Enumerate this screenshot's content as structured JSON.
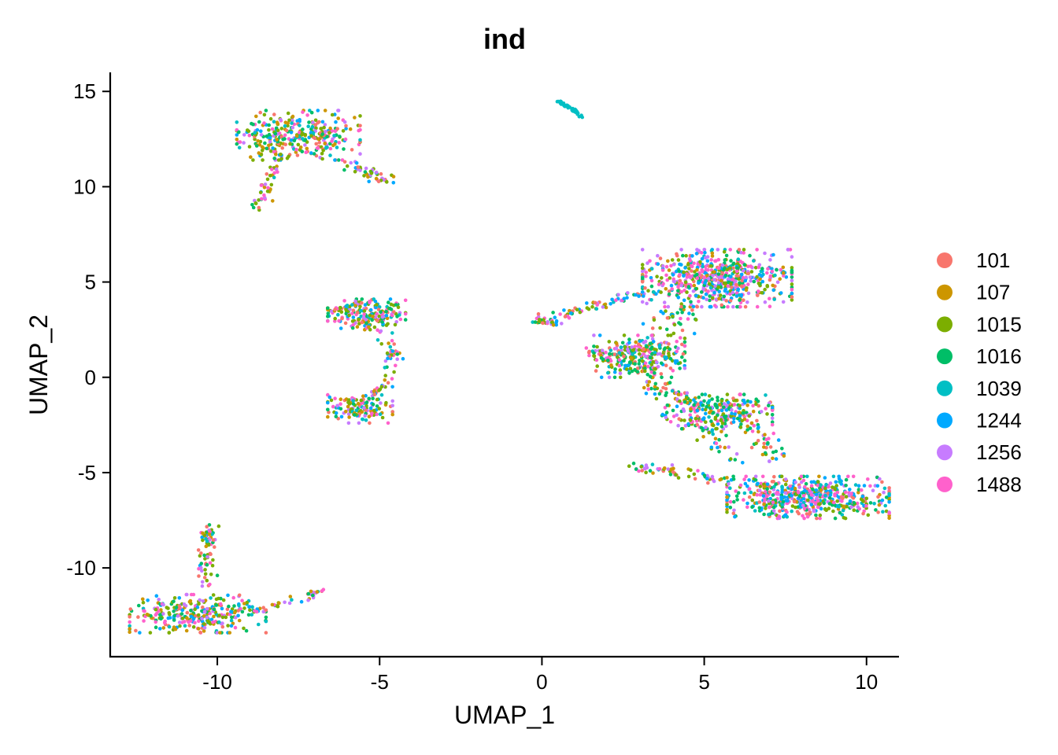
{
  "chart_data": {
    "type": "scatter",
    "title": "ind",
    "xlabel": "UMAP_1",
    "ylabel": "UMAP_2",
    "xlim": [
      -13.3,
      11.0
    ],
    "ylim": [
      -14.7,
      16.0
    ],
    "xticks": [
      -10,
      -5,
      0,
      5,
      10
    ],
    "yticks": [
      -10,
      -5,
      0,
      5,
      10,
      15
    ],
    "xtick_labels": [
      "-10",
      "-5",
      "0",
      "5",
      "10"
    ],
    "ytick_labels": [
      "-10",
      "-5",
      "0",
      "5",
      "10",
      "15"
    ],
    "grid": false,
    "legend_position": "right",
    "series": [
      {
        "name": "101",
        "color": "#F8766D"
      },
      {
        "name": "107",
        "color": "#CD9600"
      },
      {
        "name": "1015",
        "color": "#7CAE00"
      },
      {
        "name": "1016",
        "color": "#00BE67"
      },
      {
        "name": "1039",
        "color": "#00BFC4"
      },
      {
        "name": "1244",
        "color": "#00A9FF"
      },
      {
        "name": "1256",
        "color": "#C77CFF"
      },
      {
        "name": "1488",
        "color": "#FF61CC"
      }
    ],
    "clusters": [
      {
        "type": "blob",
        "center": [
          -7.5,
          12.7
        ],
        "spread": [
          0.95,
          0.65
        ],
        "n": 330,
        "weights": [
          1,
          1,
          2,
          1.5,
          0.6,
          1,
          1,
          1
        ]
      },
      {
        "type": "path",
        "points": [
          [
            -6.9,
            11.6
          ],
          [
            -5.8,
            11.0
          ],
          [
            -5.2,
            10.6
          ],
          [
            -4.8,
            10.4
          ]
        ],
        "spread": 0.15,
        "n": 50,
        "weights": [
          1,
          1,
          2,
          1,
          0.5,
          1,
          1,
          1
        ]
      },
      {
        "type": "path",
        "points": [
          [
            -8.1,
            11.5
          ],
          [
            -8.4,
            10.3
          ],
          [
            -8.8,
            8.8
          ]
        ],
        "spread": 0.12,
        "n": 45,
        "weights": [
          1,
          1,
          2.5,
          1,
          0.3,
          0.5,
          1,
          1
        ]
      },
      {
        "type": "blob",
        "center": [
          0.9,
          14.1
        ],
        "spread": [
          0.15,
          0.12
        ],
        "n": 0,
        "weights": [
          0,
          0,
          0,
          0,
          1,
          0,
          0,
          0
        ]
      },
      {
        "type": "path",
        "points": [
          [
            0.55,
            14.45
          ],
          [
            0.9,
            14.1
          ],
          [
            1.25,
            13.65
          ]
        ],
        "spread": 0.04,
        "n": 45,
        "weights": [
          0,
          0,
          0,
          0,
          1,
          0,
          0,
          0
        ]
      },
      {
        "type": "blob",
        "center": [
          -5.4,
          3.3
        ],
        "spread": [
          0.6,
          0.4
        ],
        "n": 210,
        "weights": [
          1,
          1,
          2,
          1.5,
          0.6,
          1.2,
          1,
          1
        ]
      },
      {
        "type": "path",
        "points": [
          [
            -5.0,
            2.5
          ],
          [
            -4.7,
            1.6
          ],
          [
            -4.6,
            0.8
          ],
          [
            -4.9,
            -0.4
          ],
          [
            -5.2,
            -1.0
          ]
        ],
        "spread": 0.12,
        "n": 45,
        "weights": [
          1,
          1,
          1,
          1,
          0.6,
          1.2,
          1,
          1
        ]
      },
      {
        "type": "path",
        "points": [
          [
            -4.7,
            1.2
          ],
          [
            -4.4,
            1.2
          ]
        ],
        "spread": 0.08,
        "n": 10,
        "weights": [
          1,
          1,
          1,
          1,
          0.5,
          1,
          1,
          1
        ]
      },
      {
        "type": "blob",
        "center": [
          -5.6,
          -1.6
        ],
        "spread": [
          0.5,
          0.4
        ],
        "n": 130,
        "weights": [
          1,
          1,
          2,
          1.5,
          0.6,
          1.2,
          1,
          1
        ]
      },
      {
        "type": "blob",
        "center": [
          -10.6,
          -12.4
        ],
        "spread": [
          1.05,
          0.5
        ],
        "n": 300,
        "weights": [
          1,
          1,
          2,
          1.5,
          0.6,
          1.2,
          1,
          1
        ]
      },
      {
        "type": "path",
        "points": [
          [
            -10.3,
            -11.0
          ],
          [
            -10.4,
            -9.8
          ],
          [
            -10.3,
            -8.5
          ],
          [
            -10.3,
            -7.9
          ]
        ],
        "spread": 0.14,
        "n": 70,
        "weights": [
          1,
          1,
          2.5,
          1.2,
          0.4,
          0.6,
          1,
          1
        ]
      },
      {
        "type": "path",
        "points": [
          [
            -9.4,
            -12.3
          ],
          [
            -8.3,
            -12.0
          ],
          [
            -7.3,
            -11.6
          ],
          [
            -6.8,
            -11.2
          ]
        ],
        "spread": 0.1,
        "n": 40,
        "weights": [
          1,
          1,
          1,
          1,
          0.5,
          1,
          1.2,
          1
        ]
      },
      {
        "type": "blob",
        "center": [
          5.4,
          5.2
        ],
        "spread": [
          1.15,
          0.75
        ],
        "n": 620,
        "weights": [
          1,
          0.6,
          1.5,
          1.2,
          0.6,
          1.4,
          1.2,
          2.2
        ]
      },
      {
        "type": "path",
        "points": [
          [
            -0.2,
            3.0
          ],
          [
            0.7,
            3.3
          ],
          [
            1.5,
            3.7
          ],
          [
            2.6,
            4.2
          ],
          [
            3.6,
            4.6
          ]
        ],
        "spread": 0.14,
        "n": 75,
        "weights": [
          1,
          1,
          1.5,
          1,
          0.5,
          1.2,
          1,
          1.2
        ]
      },
      {
        "type": "path",
        "points": [
          [
            -0.2,
            2.9
          ],
          [
            0.5,
            2.8
          ]
        ],
        "spread": 0.1,
        "n": 20,
        "weights": [
          1,
          1,
          2,
          1,
          0.3,
          0.6,
          1,
          1
        ]
      },
      {
        "type": "blob",
        "center": [
          3.0,
          1.1
        ],
        "spread": [
          0.7,
          0.55
        ],
        "n": 290,
        "weights": [
          1,
          0.8,
          2.2,
          2.5,
          0.5,
          1.0,
          1,
          1.2
        ]
      },
      {
        "type": "path",
        "points": [
          [
            3.4,
            2.6
          ],
          [
            4.0,
            3.2
          ],
          [
            4.6,
            3.0
          ]
        ],
        "spread": 0.35,
        "n": 35,
        "weights": [
          1,
          1,
          2,
          2,
          0.5,
          1,
          1,
          1
        ]
      },
      {
        "type": "path",
        "points": [
          [
            1.3,
            1.5
          ],
          [
            2.0,
            1.0
          ]
        ],
        "spread": 0.15,
        "n": 20,
        "weights": [
          1,
          1,
          1,
          1,
          0.5,
          1,
          1,
          1
        ]
      },
      {
        "type": "path",
        "points": [
          [
            3.3,
            -0.3
          ],
          [
            4.0,
            -0.8
          ],
          [
            4.6,
            -1.4
          ]
        ],
        "spread": 0.2,
        "n": 45,
        "weights": [
          1,
          1,
          1.5,
          2,
          0.5,
          1,
          1,
          1
        ]
      },
      {
        "type": "blob",
        "center": [
          5.4,
          -1.8
        ],
        "spread": [
          0.85,
          0.45
        ],
        "n": 250,
        "weights": [
          1,
          0.8,
          2.2,
          2.5,
          0.5,
          1.2,
          1,
          1.2
        ]
      },
      {
        "type": "path",
        "points": [
          [
            6.4,
            -2.3
          ],
          [
            6.9,
            -3.4
          ],
          [
            7.3,
            -4.4
          ]
        ],
        "spread": 0.25,
        "n": 45,
        "weights": [
          1,
          1,
          1.5,
          1.8,
          0.5,
          1.2,
          1,
          1.5
        ]
      },
      {
        "type": "path",
        "points": [
          [
            5.0,
            -2.5
          ],
          [
            5.5,
            -3.7
          ],
          [
            6.0,
            -4.5
          ]
        ],
        "spread": 0.2,
        "n": 30,
        "weights": [
          1,
          1,
          1.5,
          1.5,
          0.5,
          1,
          1,
          1.5
        ]
      },
      {
        "type": "blob",
        "center": [
          8.2,
          -6.3
        ],
        "spread": [
          1.25,
          0.55
        ],
        "n": 560,
        "weights": [
          1,
          0.6,
          1.4,
          1.2,
          0.6,
          1.6,
          1.2,
          2.2
        ]
      },
      {
        "type": "path",
        "points": [
          [
            2.7,
            -4.7
          ],
          [
            3.5,
            -4.8
          ],
          [
            4.4,
            -5.1
          ],
          [
            5.4,
            -5.4
          ],
          [
            6.2,
            -5.7
          ]
        ],
        "spread": 0.12,
        "n": 60,
        "weights": [
          1,
          1,
          2,
          1.2,
          0.5,
          1.2,
          1.5,
          1.5
        ]
      }
    ]
  }
}
